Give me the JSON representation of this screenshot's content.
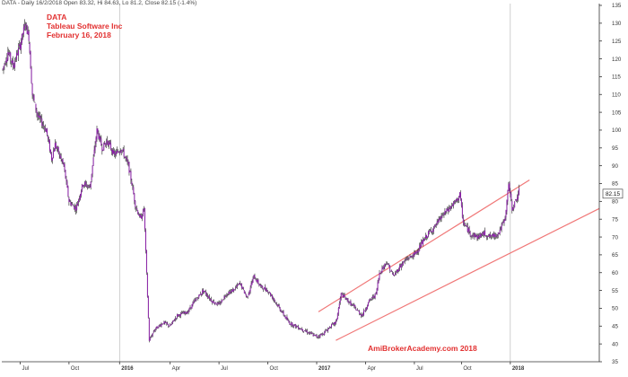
{
  "header": {
    "info": "DATA - Daily 16/2/2018 Open 83.32, Hi 84.63, Lo 81.2, Close 82.15 (-1.4%)"
  },
  "title_block": {
    "line1": "DATA",
    "line2": "Tableau Software Inc",
    "line3": "February 16, 2018"
  },
  "watermark": "AmiBrokerAcademy.com 2018",
  "colors": {
    "candle": "#8b1fa8",
    "wick": "#222222",
    "channel": "#f07878",
    "text_red": "#e23030",
    "price_tag_bg": "#ffffff"
  },
  "chart_data": {
    "type": "candlestick",
    "ticker": "DATA",
    "ylim": [
      35,
      135
    ],
    "y_ticks": [
      35,
      40,
      45,
      50,
      55,
      60,
      65,
      70,
      75,
      80,
      85,
      90,
      95,
      100,
      105,
      110,
      115,
      120,
      125,
      130,
      135
    ],
    "x_ticks": [
      {
        "label": "Jul",
        "bold": false
      },
      {
        "label": "Oct",
        "bold": false
      },
      {
        "label": "2016",
        "bold": true
      },
      {
        "label": "Apr",
        "bold": false
      },
      {
        "label": "Jul",
        "bold": false
      },
      {
        "label": "Oct",
        "bold": false
      },
      {
        "label": "2017",
        "bold": true
      },
      {
        "label": "Apr",
        "bold": false
      },
      {
        "label": "Jul",
        "bold": false
      },
      {
        "label": "Oct",
        "bold": false
      },
      {
        "label": "2018",
        "bold": true
      }
    ],
    "year_lines": [
      "2016",
      "2018"
    ],
    "last_price": "82.15",
    "price_path": [
      {
        "t": 0,
        "v": 117
      },
      {
        "t": 3,
        "v": 122
      },
      {
        "t": 6,
        "v": 118
      },
      {
        "t": 10,
        "v": 124
      },
      {
        "t": 13,
        "v": 130
      },
      {
        "t": 15,
        "v": 126
      },
      {
        "t": 17,
        "v": 110
      },
      {
        "t": 20,
        "v": 104
      },
      {
        "t": 25,
        "v": 100
      },
      {
        "t": 28,
        "v": 92
      },
      {
        "t": 30,
        "v": 96
      },
      {
        "t": 35,
        "v": 90
      },
      {
        "t": 38,
        "v": 80
      },
      {
        "t": 42,
        "v": 78
      },
      {
        "t": 46,
        "v": 85
      },
      {
        "t": 50,
        "v": 84
      },
      {
        "t": 54,
        "v": 100
      },
      {
        "t": 57,
        "v": 95
      },
      {
        "t": 60,
        "v": 97
      },
      {
        "t": 64,
        "v": 93
      },
      {
        "t": 68,
        "v": 95
      },
      {
        "t": 72,
        "v": 90
      },
      {
        "t": 74,
        "v": 85
      },
      {
        "t": 76,
        "v": 79
      },
      {
        "t": 79,
        "v": 75
      },
      {
        "t": 81,
        "v": 78
      },
      {
        "t": 84,
        "v": 41
      },
      {
        "t": 87,
        "v": 44
      },
      {
        "t": 92,
        "v": 46
      },
      {
        "t": 96,
        "v": 45
      },
      {
        "t": 100,
        "v": 48
      },
      {
        "t": 106,
        "v": 49
      },
      {
        "t": 110,
        "v": 52
      },
      {
        "t": 115,
        "v": 55
      },
      {
        "t": 120,
        "v": 52
      },
      {
        "t": 124,
        "v": 51
      },
      {
        "t": 128,
        "v": 54
      },
      {
        "t": 132,
        "v": 55
      },
      {
        "t": 136,
        "v": 57
      },
      {
        "t": 140,
        "v": 53
      },
      {
        "t": 144,
        "v": 59
      },
      {
        "t": 148,
        "v": 56
      },
      {
        "t": 152,
        "v": 55
      },
      {
        "t": 156,
        "v": 52
      },
      {
        "t": 160,
        "v": 49
      },
      {
        "t": 164,
        "v": 46
      },
      {
        "t": 168,
        "v": 45
      },
      {
        "t": 172,
        "v": 44
      },
      {
        "t": 176,
        "v": 43
      },
      {
        "t": 180,
        "v": 42
      },
      {
        "t": 184,
        "v": 43
      },
      {
        "t": 188,
        "v": 45
      },
      {
        "t": 191,
        "v": 46
      },
      {
        "t": 194,
        "v": 54
      },
      {
        "t": 198,
        "v": 52
      },
      {
        "t": 202,
        "v": 50
      },
      {
        "t": 206,
        "v": 48
      },
      {
        "t": 210,
        "v": 52
      },
      {
        "t": 214,
        "v": 54
      },
      {
        "t": 216,
        "v": 60
      },
      {
        "t": 220,
        "v": 63
      },
      {
        "t": 224,
        "v": 59
      },
      {
        "t": 228,
        "v": 62
      },
      {
        "t": 232,
        "v": 64
      },
      {
        "t": 236,
        "v": 65
      },
      {
        "t": 240,
        "v": 68
      },
      {
        "t": 244,
        "v": 71
      },
      {
        "t": 248,
        "v": 73
      },
      {
        "t": 252,
        "v": 76
      },
      {
        "t": 256,
        "v": 78
      },
      {
        "t": 260,
        "v": 80
      },
      {
        "t": 262,
        "v": 82
      },
      {
        "t": 264,
        "v": 74
      },
      {
        "t": 268,
        "v": 71
      },
      {
        "t": 272,
        "v": 70
      },
      {
        "t": 276,
        "v": 71
      },
      {
        "t": 280,
        "v": 70
      },
      {
        "t": 284,
        "v": 71
      },
      {
        "t": 288,
        "v": 75
      },
      {
        "t": 290,
        "v": 85
      },
      {
        "t": 292,
        "v": 78
      },
      {
        "t": 294,
        "v": 80
      },
      {
        "t": 296,
        "v": 83
      }
    ],
    "channel_lines": [
      {
        "from": {
          "t": 181,
          "v": 49
        },
        "to": {
          "t": 302,
          "v": 86
        }
      },
      {
        "from": {
          "t": 191,
          "v": 41
        },
        "to": {
          "t": 342,
          "v": 78
        }
      }
    ]
  }
}
